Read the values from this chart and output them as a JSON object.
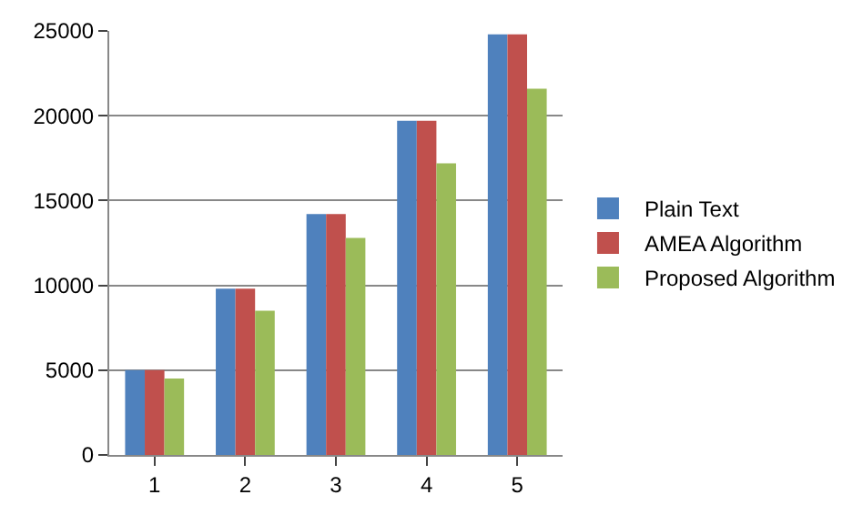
{
  "chart_data": {
    "type": "bar",
    "categories": [
      "1",
      "2",
      "3",
      "4",
      "5"
    ],
    "series": [
      {
        "name": "Plain Text",
        "color": "#4f81bd",
        "values": [
          5000,
          9800,
          14200,
          19700,
          24800
        ]
      },
      {
        "name": "AMEA Algorithm",
        "color": "#c0504d",
        "values": [
          5000,
          9800,
          14200,
          19700,
          24800
        ]
      },
      {
        "name": "Proposed Algorithm",
        "color": "#9bbb59",
        "values": [
          4500,
          8500,
          12800,
          17200,
          21600
        ]
      }
    ],
    "ylim": [
      0,
      25000
    ],
    "yticks": [
      0,
      5000,
      10000,
      15000,
      20000,
      25000
    ],
    "grid": "y",
    "legend": "right"
  }
}
